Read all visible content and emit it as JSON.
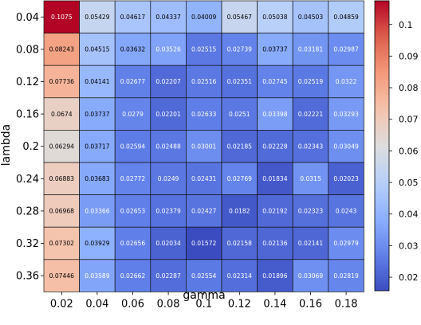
{
  "chart_data": {
    "type": "heatmap",
    "xlabel": "gamma",
    "ylabel": "lambda",
    "x_categories": [
      "0.02",
      "0.04",
      "0.06",
      "0.08",
      "0.1",
      "0.12",
      "0.14",
      "0.16",
      "0.18"
    ],
    "y_categories": [
      "0.04",
      "0.08",
      "0.12",
      "0.16",
      "0.2",
      "0.24",
      "0.28",
      "0.32",
      "0.36"
    ],
    "values": [
      [
        0.1075,
        0.05429,
        0.04617,
        0.04337,
        0.04009,
        0.05467,
        0.05038,
        0.04503,
        0.04859
      ],
      [
        0.08243,
        0.04515,
        0.03632,
        0.03526,
        0.02515,
        0.02739,
        0.03737,
        0.03181,
        0.02987
      ],
      [
        0.07736,
        0.04141,
        0.02677,
        0.02207,
        0.02516,
        0.02351,
        0.02745,
        0.02519,
        0.0322
      ],
      [
        0.0674,
        0.03737,
        0.0279,
        0.02201,
        0.02633,
        0.0251,
        0.03398,
        0.02221,
        0.03293
      ],
      [
        0.06294,
        0.03717,
        0.02594,
        0.02488,
        0.03001,
        0.02185,
        0.02228,
        0.02343,
        0.03049
      ],
      [
        0.06883,
        0.03683,
        0.02772,
        0.0249,
        0.02431,
        0.02769,
        0.01834,
        0.0315,
        0.02023
      ],
      [
        0.06968,
        0.03366,
        0.02653,
        0.02379,
        0.02427,
        0.0182,
        0.02192,
        0.02323,
        0.0243
      ],
      [
        0.07302,
        0.03929,
        0.02656,
        0.02034,
        0.01572,
        0.02158,
        0.02136,
        0.02141,
        0.02979
      ],
      [
        0.07446,
        0.03589,
        0.02662,
        0.02287,
        0.02554,
        0.02314,
        0.01896,
        0.03069,
        0.02819
      ]
    ],
    "colormap": "coolwarm",
    "colorbar": {
      "ticks": [
        "0.1",
        "0.09",
        "0.08",
        "0.07",
        "0.06",
        "0.05",
        "0.04",
        "0.03",
        "0.02"
      ],
      "tick_values": [
        0.1,
        0.09,
        0.08,
        0.07,
        0.06,
        0.05,
        0.04,
        0.03,
        0.02
      ],
      "range": [
        0.01572,
        0.1075
      ]
    }
  }
}
